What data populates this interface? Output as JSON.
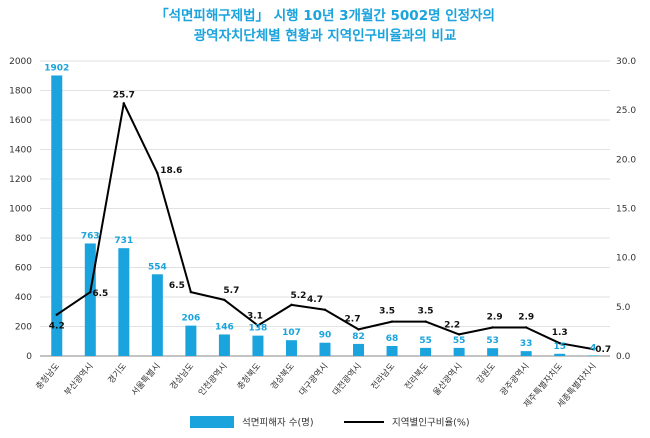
{
  "chart_data": {
    "type": "bar",
    "title_lines": [
      "「석면피해구제법」 시행 10년 3개월간 5002명 인정자의",
      "광역자치단체별 현황과 지역인구비율과의 비교"
    ],
    "categories": [
      "충청남도",
      "부산광역시",
      "경기도",
      "서울특별시",
      "경상남도",
      "인천광역시",
      "충청북도",
      "경상북도",
      "대구광역시",
      "대전광역시",
      "전라남도",
      "전라북도",
      "울산광역시",
      "강원도",
      "광주광역시",
      "제주특별자치도",
      "세종특별자치시"
    ],
    "series": [
      {
        "name": "석면피해자 수(명)",
        "type": "bar",
        "axis": "left",
        "color": "#1aa3dc",
        "values": [
          1902,
          763,
          731,
          554,
          206,
          146,
          138,
          107,
          90,
          82,
          68,
          55,
          55,
          53,
          33,
          15,
          4
        ]
      },
      {
        "name": "지역별인구비율(%)",
        "type": "line",
        "axis": "right",
        "color": "#000000",
        "values": [
          4.2,
          6.5,
          25.7,
          18.6,
          6.5,
          5.7,
          3.1,
          5.2,
          4.7,
          2.7,
          3.5,
          3.5,
          2.2,
          2.9,
          2.9,
          1.3,
          0.7
        ]
      }
    ],
    "ylim_left": [
      0,
      2000
    ],
    "yticks_left": [
      "0",
      "200",
      "400",
      "600",
      "800",
      "1000",
      "1200",
      "1400",
      "1600",
      "1800",
      "2000"
    ],
    "ylim_right": [
      0,
      30
    ],
    "yticks_right": [
      "0.0",
      "5.0",
      "10.0",
      "15.0",
      "20.0",
      "25.0",
      "30.0"
    ],
    "grid": true,
    "legend_position": "bottom"
  }
}
